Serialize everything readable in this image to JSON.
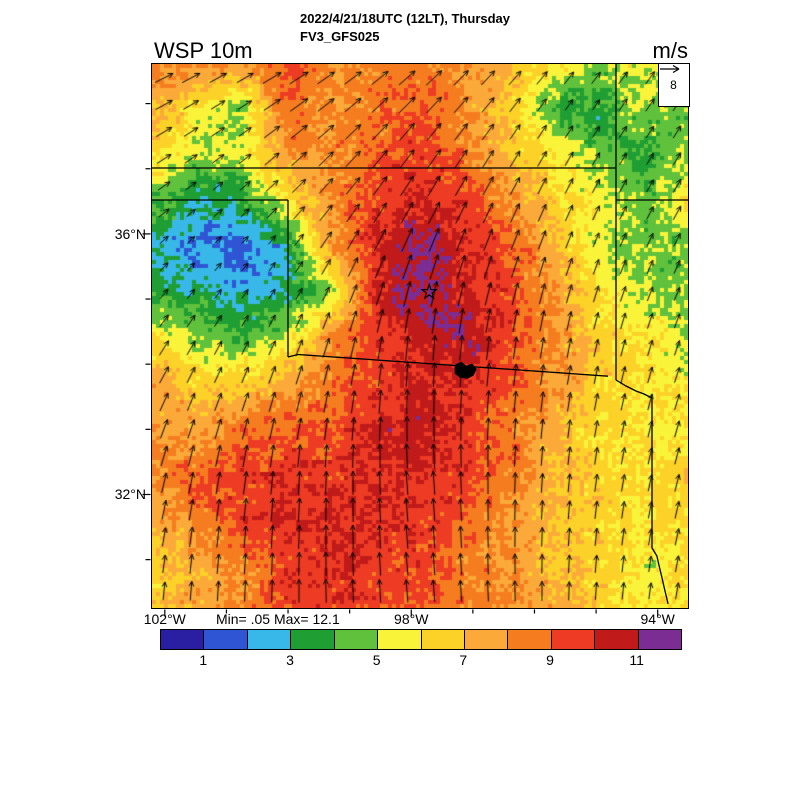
{
  "header": {
    "datetime_line": "2022/4/21/18UTC (12LT), Thursday",
    "model_line": "FV3_GFS025",
    "variable_label": "WSP 10m",
    "units_label": "m/s"
  },
  "map": {
    "stats_label": "Min= .05 Max= 12.1",
    "reference_vector": {
      "value": "8"
    }
  },
  "chart_data": {
    "type": "heatmap",
    "title": "WSP 10m",
    "units": "m/s",
    "valid_time": "2022/4/21/18UTC (12LT), Thursday",
    "model": "FV3_GFS025",
    "min": 0.05,
    "max": 12.1,
    "lon_range": [
      -102.2,
      -93.5
    ],
    "lat_range": [
      30.25,
      38.6
    ],
    "x_axis": {
      "major": [
        {
          "lon": -102,
          "label": "102°W"
        },
        {
          "lon": -98,
          "label": "98°W"
        },
        {
          "lon": -94,
          "label": "94°W"
        }
      ],
      "minor_lons": [
        -101,
        -100,
        -99,
        -97,
        -96,
        -95
      ]
    },
    "y_axis": {
      "major": [
        {
          "lat": 36,
          "label": "36°N"
        },
        {
          "lat": 32,
          "label": "32°N"
        }
      ],
      "minor_lats": [
        38,
        37,
        35,
        34,
        33,
        31
      ]
    },
    "colorbar": {
      "levels": [
        0,
        1,
        2,
        3,
        4,
        5,
        6,
        7,
        8,
        9,
        10,
        11,
        12
      ],
      "ticks": [
        1,
        3,
        5,
        7,
        9,
        11
      ],
      "colors": [
        "#2a1fa2",
        "#2f55d4",
        "#38b8e8",
        "#1f9e33",
        "#5fc13c",
        "#f9f43a",
        "#fcd228",
        "#fbaa3a",
        "#f57d20",
        "#ed3b24",
        "#c01a1a",
        "#7c2d94"
      ]
    },
    "speed_grid": {
      "description": "10m wind speed (m/s), rows north-to-south over lat_range, cols west-to-east over lon_range",
      "values": [
        [
          8.0,
          8.5,
          8.0,
          9.0,
          8.0,
          8.0,
          8.5,
          8.0,
          7.0,
          6.0,
          5.0,
          5.5,
          4.5
        ],
        [
          7.5,
          6.0,
          4.5,
          9.0,
          8.0,
          8.5,
          9.0,
          8.0,
          6.5,
          4.0,
          3.5,
          5.0,
          4.5
        ],
        [
          6.5,
          5.0,
          5.0,
          8.0,
          8.0,
          9.0,
          9.5,
          8.5,
          7.0,
          6.0,
          4.5,
          3.5,
          5.0
        ],
        [
          4.5,
          3.0,
          3.5,
          6.0,
          8.0,
          9.5,
          10.0,
          9.5,
          8.0,
          6.5,
          5.5,
          4.5,
          6.0
        ],
        [
          3.0,
          2.0,
          1.5,
          3.0,
          8.0,
          10.0,
          11.3,
          10.0,
          9.0,
          7.5,
          5.0,
          4.5,
          4.5
        ],
        [
          3.5,
          3.0,
          2.5,
          3.0,
          5.0,
          10.0,
          11.5,
          10.0,
          9.5,
          8.0,
          6.0,
          5.0,
          4.5
        ],
        [
          6.0,
          5.0,
          4.0,
          5.0,
          8.0,
          9.5,
          10.5,
          11.0,
          9.5,
          8.0,
          6.5,
          6.0,
          5.0
        ],
        [
          7.5,
          6.5,
          6.5,
          7.5,
          8.5,
          9.5,
          10.0,
          10.0,
          9.0,
          8.0,
          6.5,
          6.0,
          5.5
        ],
        [
          8.0,
          7.5,
          8.5,
          9.0,
          9.0,
          10.0,
          10.8,
          9.5,
          8.5,
          7.5,
          6.0,
          6.0,
          6.0
        ],
        [
          8.0,
          9.0,
          9.5,
          9.5,
          9.5,
          10.0,
          10.0,
          9.5,
          8.5,
          7.0,
          6.5,
          6.0,
          6.5
        ],
        [
          7.0,
          8.5,
          9.5,
          10.0,
          10.0,
          10.0,
          9.5,
          9.0,
          8.0,
          7.0,
          6.5,
          6.0,
          6.5
        ],
        [
          6.5,
          7.5,
          8.0,
          9.5,
          10.0,
          9.5,
          9.5,
          8.5,
          8.0,
          7.0,
          6.5,
          5.5,
          6.0
        ],
        [
          6.5,
          7.5,
          8.5,
          9.5,
          9.5,
          9.5,
          9.0,
          8.5,
          8.0,
          7.5,
          6.5,
          6.0,
          6.0
        ]
      ]
    },
    "wind_dir_grid": {
      "description": "arrow pointing direction in degrees (0=east, 90=north), coarse grid rows north-to-south",
      "values": [
        [
          25,
          30,
          40,
          50,
          55
        ],
        [
          35,
          45,
          60,
          65,
          60
        ],
        [
          55,
          65,
          85,
          80,
          70
        ],
        [
          75,
          85,
          95,
          85,
          75
        ],
        [
          85,
          90,
          95,
          90,
          80
        ]
      ]
    },
    "reference_vector": {
      "value": 8,
      "units": "m/s"
    },
    "markers": [
      {
        "type": "star",
        "lon": -97.7,
        "lat": 35.1
      },
      {
        "type": "lake",
        "lon": -97.15,
        "lat": 33.9
      }
    ]
  }
}
